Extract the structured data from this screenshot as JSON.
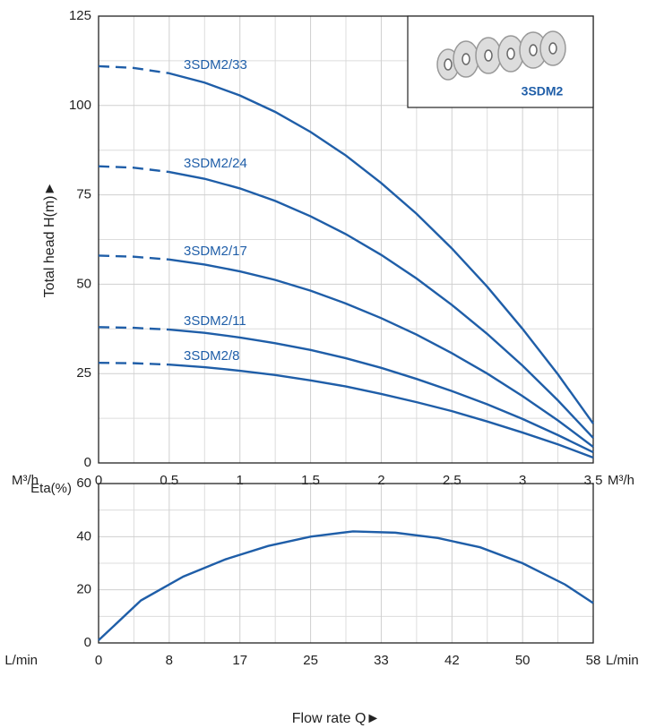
{
  "chart_data": [
    {
      "type": "line",
      "y_label": "Total head H(m)►",
      "x_unit": "M³/h",
      "inset_label": "3SDM2",
      "x": [
        0,
        0.25,
        0.5,
        0.75,
        1,
        1.25,
        1.5,
        1.75,
        2,
        2.25,
        2.5,
        2.75,
        3,
        3.25,
        3.5
      ],
      "series": [
        {
          "name": "3SDM2/33",
          "color": "#1f5ea8",
          "values": [
            111,
            110.5,
            109.0,
            106.4,
            102.8,
            98.2,
            92.6,
            86.0,
            78.3,
            69.7,
            60.0,
            49.3,
            37.5,
            24.8,
            11.0
          ]
        },
        {
          "name": "3SDM2/24",
          "color": "#1f5ea8",
          "values": [
            83,
            82.6,
            81.4,
            79.5,
            76.8,
            73.3,
            69.0,
            64.0,
            58.2,
            51.6,
            44.2,
            36.1,
            27.2,
            17.5,
            7.0
          ]
        },
        {
          "name": "3SDM2/17",
          "color": "#1f5ea8",
          "values": [
            58,
            57.7,
            56.9,
            55.5,
            53.6,
            51.2,
            48.2,
            44.6,
            40.5,
            35.9,
            30.7,
            25.0,
            18.7,
            11.9,
            4.5
          ]
        },
        {
          "name": "3SDM2/11",
          "color": "#1f5ea8",
          "values": [
            38,
            37.8,
            37.3,
            36.4,
            35.1,
            33.5,
            31.6,
            29.3,
            26.6,
            23.5,
            20.1,
            16.4,
            12.3,
            7.8,
            3.0
          ]
        },
        {
          "name": "3SDM2/8",
          "color": "#1f5ea8",
          "values": [
            28,
            27.9,
            27.5,
            26.8,
            25.8,
            24.6,
            23.1,
            21.4,
            19.3,
            17.0,
            14.5,
            11.6,
            8.5,
            5.2,
            1.5
          ]
        }
      ],
      "xlim": [
        0,
        3.5
      ],
      "ylim": [
        0,
        125
      ],
      "xticks": [
        0,
        0.5,
        1,
        1.5,
        2,
        2.5,
        3,
        3.5
      ],
      "yticks": [
        0,
        25,
        50,
        75,
        100,
        125
      ],
      "grid": true
    },
    {
      "type": "line",
      "y_label": "Eta(%)",
      "x_unit": "L/min",
      "x_label": "Flow rate Q►",
      "x": [
        0,
        5,
        10,
        15,
        20,
        25,
        30,
        35,
        40,
        45,
        50,
        55,
        58.33
      ],
      "series": [
        {
          "color": "#1f5ea8",
          "values": [
            1,
            16,
            25,
            31.5,
            36.5,
            40,
            42,
            41.5,
            39.5,
            36,
            30,
            22,
            15
          ]
        }
      ],
      "xlim": [
        0,
        58.33
      ],
      "ylim": [
        0,
        60
      ],
      "xticks": [
        0,
        {
          "value": 8.33,
          "label": "8"
        },
        {
          "value": 16.67,
          "label": "17"
        },
        25,
        {
          "value": 33.33,
          "label": "33"
        },
        {
          "value": 41.67,
          "label": "42"
        },
        50,
        {
          "value": 58.33,
          "label": "58"
        }
      ],
      "yticks": [
        0,
        20,
        40,
        60
      ],
      "grid": true
    }
  ]
}
